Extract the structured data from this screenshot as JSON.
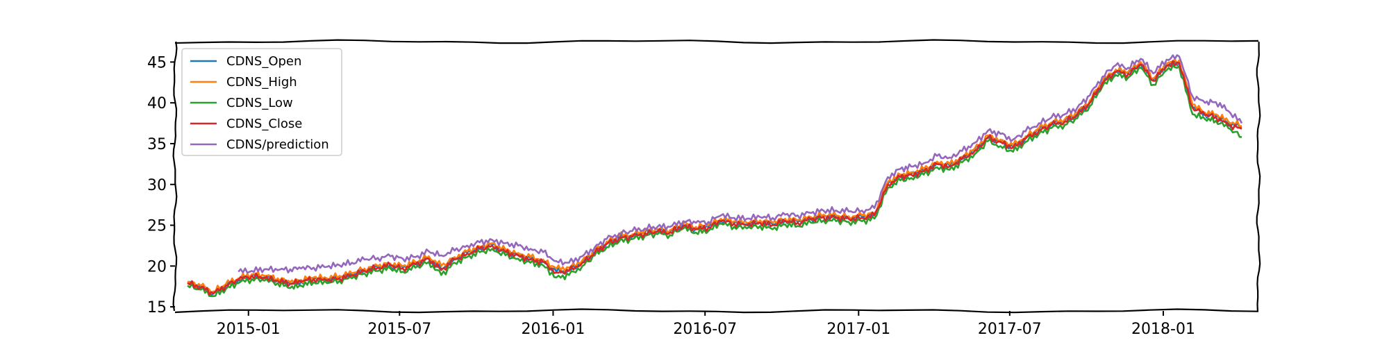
{
  "chart_data": {
    "type": "line",
    "title": "",
    "xlabel": "",
    "ylabel": "",
    "x_range": [
      "2014-10-05",
      "2018-04-25"
    ],
    "ylim": [
      14.5,
      47.5
    ],
    "y_ticks": [
      15,
      20,
      25,
      30,
      35,
      40,
      45
    ],
    "x_ticks": [
      {
        "date": "2015-01-01",
        "label": "2015-01"
      },
      {
        "date": "2015-07-01",
        "label": "2015-07"
      },
      {
        "date": "2016-01-01",
        "label": "2016-01"
      },
      {
        "date": "2016-07-01",
        "label": "2016-07"
      },
      {
        "date": "2017-01-01",
        "label": "2017-01"
      },
      {
        "date": "2017-07-01",
        "label": "2017-07"
      },
      {
        "date": "2018-01-01",
        "label": "2018-01"
      }
    ],
    "grid": false,
    "legend": "top-left",
    "x": [
      "2014-10-20",
      "2014-11-05",
      "2014-11-20",
      "2014-12-05",
      "2014-12-20",
      "2015-01-05",
      "2015-01-20",
      "2015-02-05",
      "2015-02-20",
      "2015-03-05",
      "2015-03-20",
      "2015-04-05",
      "2015-04-20",
      "2015-05-05",
      "2015-05-20",
      "2015-06-05",
      "2015-06-20",
      "2015-07-05",
      "2015-07-20",
      "2015-08-05",
      "2015-08-20",
      "2015-09-05",
      "2015-09-20",
      "2015-10-05",
      "2015-10-20",
      "2015-11-05",
      "2015-11-20",
      "2015-12-05",
      "2015-12-20",
      "2016-01-05",
      "2016-01-20",
      "2016-02-05",
      "2016-02-20",
      "2016-03-05",
      "2016-03-20",
      "2016-04-05",
      "2016-04-20",
      "2016-05-05",
      "2016-05-20",
      "2016-06-05",
      "2016-06-20",
      "2016-07-05",
      "2016-07-20",
      "2016-08-05",
      "2016-08-20",
      "2016-09-05",
      "2016-09-20",
      "2016-10-05",
      "2016-10-20",
      "2016-11-05",
      "2016-11-20",
      "2016-12-05",
      "2016-12-20",
      "2017-01-05",
      "2017-01-20",
      "2017-02-05",
      "2017-02-20",
      "2017-03-05",
      "2017-03-20",
      "2017-04-05",
      "2017-04-20",
      "2017-05-05",
      "2017-05-20",
      "2017-06-05",
      "2017-06-20",
      "2017-07-05",
      "2017-07-20",
      "2017-08-05",
      "2017-08-20",
      "2017-09-05",
      "2017-09-20",
      "2017-10-05",
      "2017-10-20",
      "2017-11-05",
      "2017-11-20",
      "2017-12-05",
      "2017-12-20",
      "2018-01-05",
      "2018-01-20",
      "2018-02-05",
      "2018-02-20",
      "2018-03-05",
      "2018-03-20",
      "2018-04-05"
    ],
    "series": [
      {
        "name": "CDNS_Open",
        "color": "#1f77b4",
        "values": [
          17.9,
          17.4,
          16.7,
          17.6,
          18.3,
          18.8,
          18.6,
          18.3,
          17.8,
          18.1,
          18.4,
          18.3,
          18.6,
          18.9,
          19.5,
          19.8,
          20.1,
          19.8,
          20.3,
          21.0,
          19.6,
          20.9,
          21.6,
          22.2,
          22.6,
          21.8,
          21.4,
          20.9,
          20.6,
          19.3,
          19.5,
          20.5,
          21.7,
          22.8,
          23.5,
          23.7,
          24.1,
          24.3,
          24.2,
          25.0,
          24.6,
          24.8,
          25.6,
          25.3,
          25.1,
          25.4,
          25.1,
          25.6,
          25.4,
          25.8,
          26.1,
          26.0,
          25.9,
          26.0,
          26.3,
          30.1,
          31.0,
          31.3,
          31.7,
          32.6,
          32.3,
          33.2,
          34.2,
          35.8,
          35.3,
          34.6,
          35.7,
          36.7,
          37.4,
          37.8,
          38.6,
          40.1,
          42.5,
          43.9,
          43.6,
          44.8,
          42.8,
          44.6,
          45.0,
          39.5,
          38.6,
          38.4,
          37.5,
          37.0
        ]
      },
      {
        "name": "CDNS_High",
        "color": "#ff7f0e",
        "values": [
          18.1,
          17.6,
          16.9,
          17.8,
          18.5,
          19.0,
          18.8,
          18.5,
          18.0,
          18.3,
          18.6,
          18.5,
          18.8,
          19.1,
          19.7,
          20.0,
          20.3,
          20.0,
          20.5,
          21.2,
          20.0,
          21.1,
          21.8,
          22.4,
          22.8,
          22.0,
          21.6,
          21.1,
          20.8,
          19.7,
          19.8,
          20.7,
          21.9,
          23.0,
          23.7,
          23.9,
          24.3,
          24.5,
          24.4,
          25.2,
          24.8,
          25.0,
          25.8,
          25.5,
          25.3,
          25.6,
          25.3,
          25.8,
          25.6,
          26.0,
          26.3,
          26.2,
          26.1,
          26.2,
          26.5,
          30.3,
          31.2,
          31.5,
          31.9,
          32.8,
          32.5,
          33.4,
          34.4,
          36.0,
          35.5,
          34.8,
          35.9,
          36.9,
          37.6,
          38.0,
          38.8,
          40.3,
          42.7,
          44.1,
          43.8,
          45.0,
          43.0,
          44.8,
          45.2,
          39.8,
          38.8,
          38.6,
          37.7,
          37.2
        ]
      },
      {
        "name": "CDNS_Low",
        "color": "#2ca02c",
        "values": [
          17.6,
          17.1,
          16.3,
          17.2,
          17.9,
          18.4,
          18.2,
          17.9,
          17.3,
          17.6,
          18.0,
          17.9,
          18.2,
          18.5,
          19.1,
          19.4,
          19.7,
          19.3,
          19.8,
          20.5,
          18.9,
          20.4,
          21.1,
          21.7,
          22.1,
          21.3,
          20.9,
          20.4,
          20.1,
          18.6,
          18.9,
          20.0,
          21.3,
          22.3,
          23.0,
          23.3,
          23.7,
          23.9,
          23.8,
          24.6,
          24.1,
          24.3,
          25.2,
          24.8,
          24.6,
          24.9,
          24.5,
          25.1,
          24.9,
          25.3,
          25.6,
          25.5,
          25.4,
          25.5,
          25.8,
          29.6,
          30.5,
          30.8,
          31.2,
          32.1,
          31.8,
          32.7,
          33.7,
          35.3,
          34.7,
          34.0,
          35.2,
          36.2,
          36.9,
          37.3,
          38.1,
          39.6,
          42.0,
          43.4,
          43.1,
          44.3,
          42.2,
          44.0,
          44.5,
          38.6,
          38.0,
          37.8,
          36.9,
          35.8
        ]
      },
      {
        "name": "CDNS_Close",
        "color": "#d62728",
        "values": [
          17.9,
          17.4,
          16.6,
          17.6,
          18.3,
          18.8,
          18.5,
          18.2,
          17.8,
          18.1,
          18.4,
          18.2,
          18.5,
          18.8,
          19.4,
          19.8,
          20.1,
          19.7,
          20.2,
          20.9,
          19.5,
          20.8,
          21.5,
          22.1,
          22.5,
          21.7,
          21.3,
          20.8,
          20.5,
          19.2,
          19.4,
          20.4,
          21.6,
          22.7,
          23.4,
          23.6,
          24.0,
          24.2,
          24.1,
          24.9,
          24.5,
          24.7,
          25.5,
          25.2,
          25.0,
          25.3,
          25.0,
          25.5,
          25.3,
          25.7,
          26.0,
          25.9,
          25.8,
          25.9,
          26.2,
          30.0,
          30.9,
          31.2,
          31.6,
          32.5,
          32.2,
          33.1,
          34.1,
          35.7,
          35.2,
          34.5,
          35.6,
          36.6,
          37.3,
          37.7,
          38.5,
          40.0,
          42.4,
          43.8,
          43.5,
          44.7,
          42.7,
          44.5,
          44.9,
          39.4,
          38.5,
          38.3,
          37.2,
          36.8
        ]
      },
      {
        "name": "CDNS/prediction",
        "color": "#9467bd",
        "values": [
          null,
          null,
          null,
          null,
          19.3,
          19.4,
          19.6,
          19.5,
          19.6,
          19.7,
          19.8,
          19.9,
          20.1,
          20.4,
          20.8,
          21.0,
          21.2,
          20.9,
          21.1,
          21.8,
          21.3,
          21.9,
          22.5,
          22.9,
          23.2,
          22.8,
          22.5,
          22.1,
          21.7,
          20.6,
          20.4,
          21.2,
          22.3,
          23.3,
          24.0,
          24.3,
          24.6,
          24.8,
          24.8,
          25.5,
          25.3,
          25.4,
          26.2,
          25.9,
          25.8,
          26.0,
          25.9,
          26.3,
          26.2,
          26.5,
          26.8,
          26.8,
          26.7,
          26.8,
          27.1,
          30.9,
          31.9,
          32.2,
          32.6,
          33.5,
          33.3,
          34.1,
          35.1,
          36.6,
          36.2,
          35.5,
          36.5,
          37.5,
          38.2,
          38.6,
          39.4,
          40.9,
          43.2,
          44.6,
          44.3,
          45.4,
          43.6,
          45.3,
          45.7,
          40.8,
          40.0,
          40.1,
          39.0,
          37.5
        ]
      }
    ]
  }
}
